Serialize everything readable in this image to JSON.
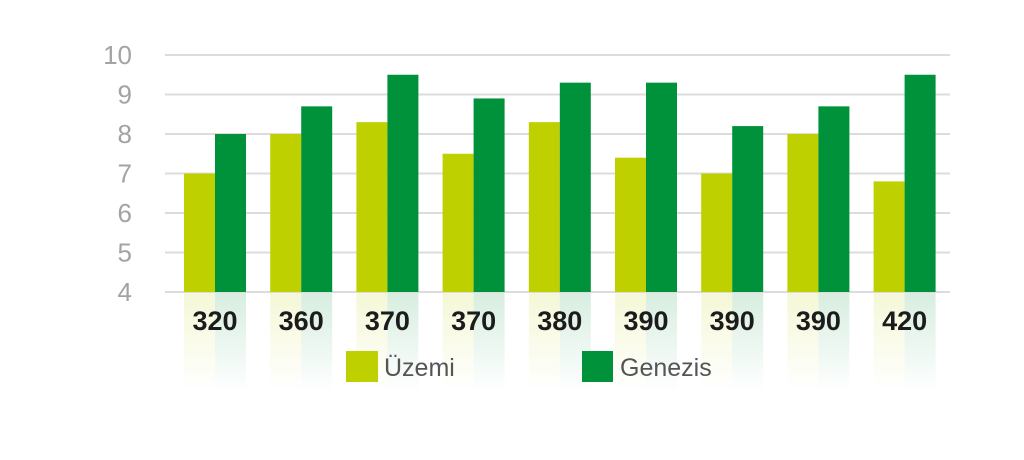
{
  "chart_data": {
    "type": "bar",
    "categories": [
      "320",
      "360",
      "370",
      "370",
      "380",
      "390",
      "390",
      "390",
      "420"
    ],
    "series": [
      {
        "name": "Üzemi",
        "color": "#bed000",
        "values": [
          7.0,
          8.0,
          8.3,
          7.5,
          8.3,
          7.4,
          7.0,
          8.0,
          6.8
        ]
      },
      {
        "name": "Genezis",
        "color": "#00923a",
        "values": [
          8.0,
          8.7,
          9.5,
          8.9,
          9.3,
          9.3,
          8.2,
          8.7,
          9.5
        ]
      }
    ],
    "yticks": [
      "4",
      "5",
      "6",
      "7",
      "8",
      "9",
      "10"
    ],
    "ylim": [
      4,
      10
    ],
    "grid": true,
    "legend": "bottom",
    "gridColor": "#dcdcdc"
  }
}
